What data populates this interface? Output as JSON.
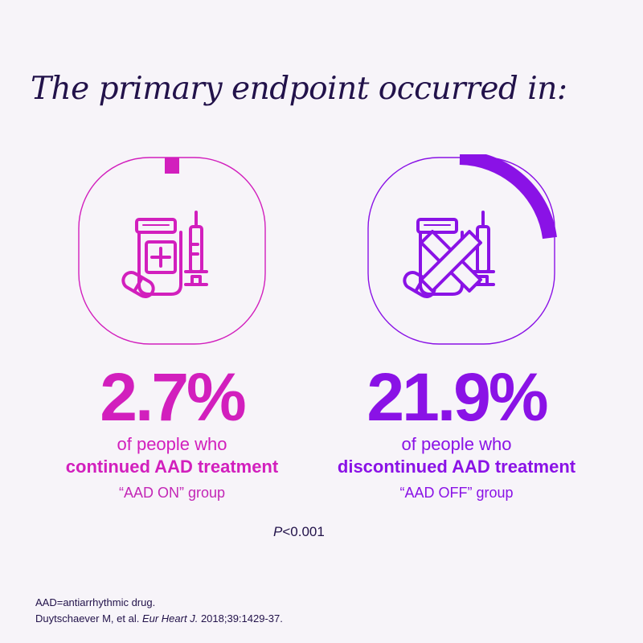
{
  "headline": "The primary endpoint occurred in:",
  "groups": [
    {
      "value": "2.7%",
      "fraction": 0.027,
      "line1": "of people who",
      "line2": "continued AAD treatment",
      "line3": "“AAD ON” group",
      "color": "#d21fbd",
      "icon": "medication-icon"
    },
    {
      "value": "21.9%",
      "fraction": 0.219,
      "line1": "of people who",
      "line2": "discontinued AAD treatment",
      "line3": "“AAD OFF” group",
      "color": "#8a12e6",
      "icon": "medication-crossed-icon"
    }
  ],
  "p_value": {
    "symbol": "P",
    "text": "<0.001"
  },
  "footnote": {
    "definition": "AAD=antiarrhythmic drug.",
    "citation_authors": "Duytschaever M, et al.",
    "citation_journal": "Eur Heart J.",
    "citation_details": "2018;39:1429-37."
  }
}
